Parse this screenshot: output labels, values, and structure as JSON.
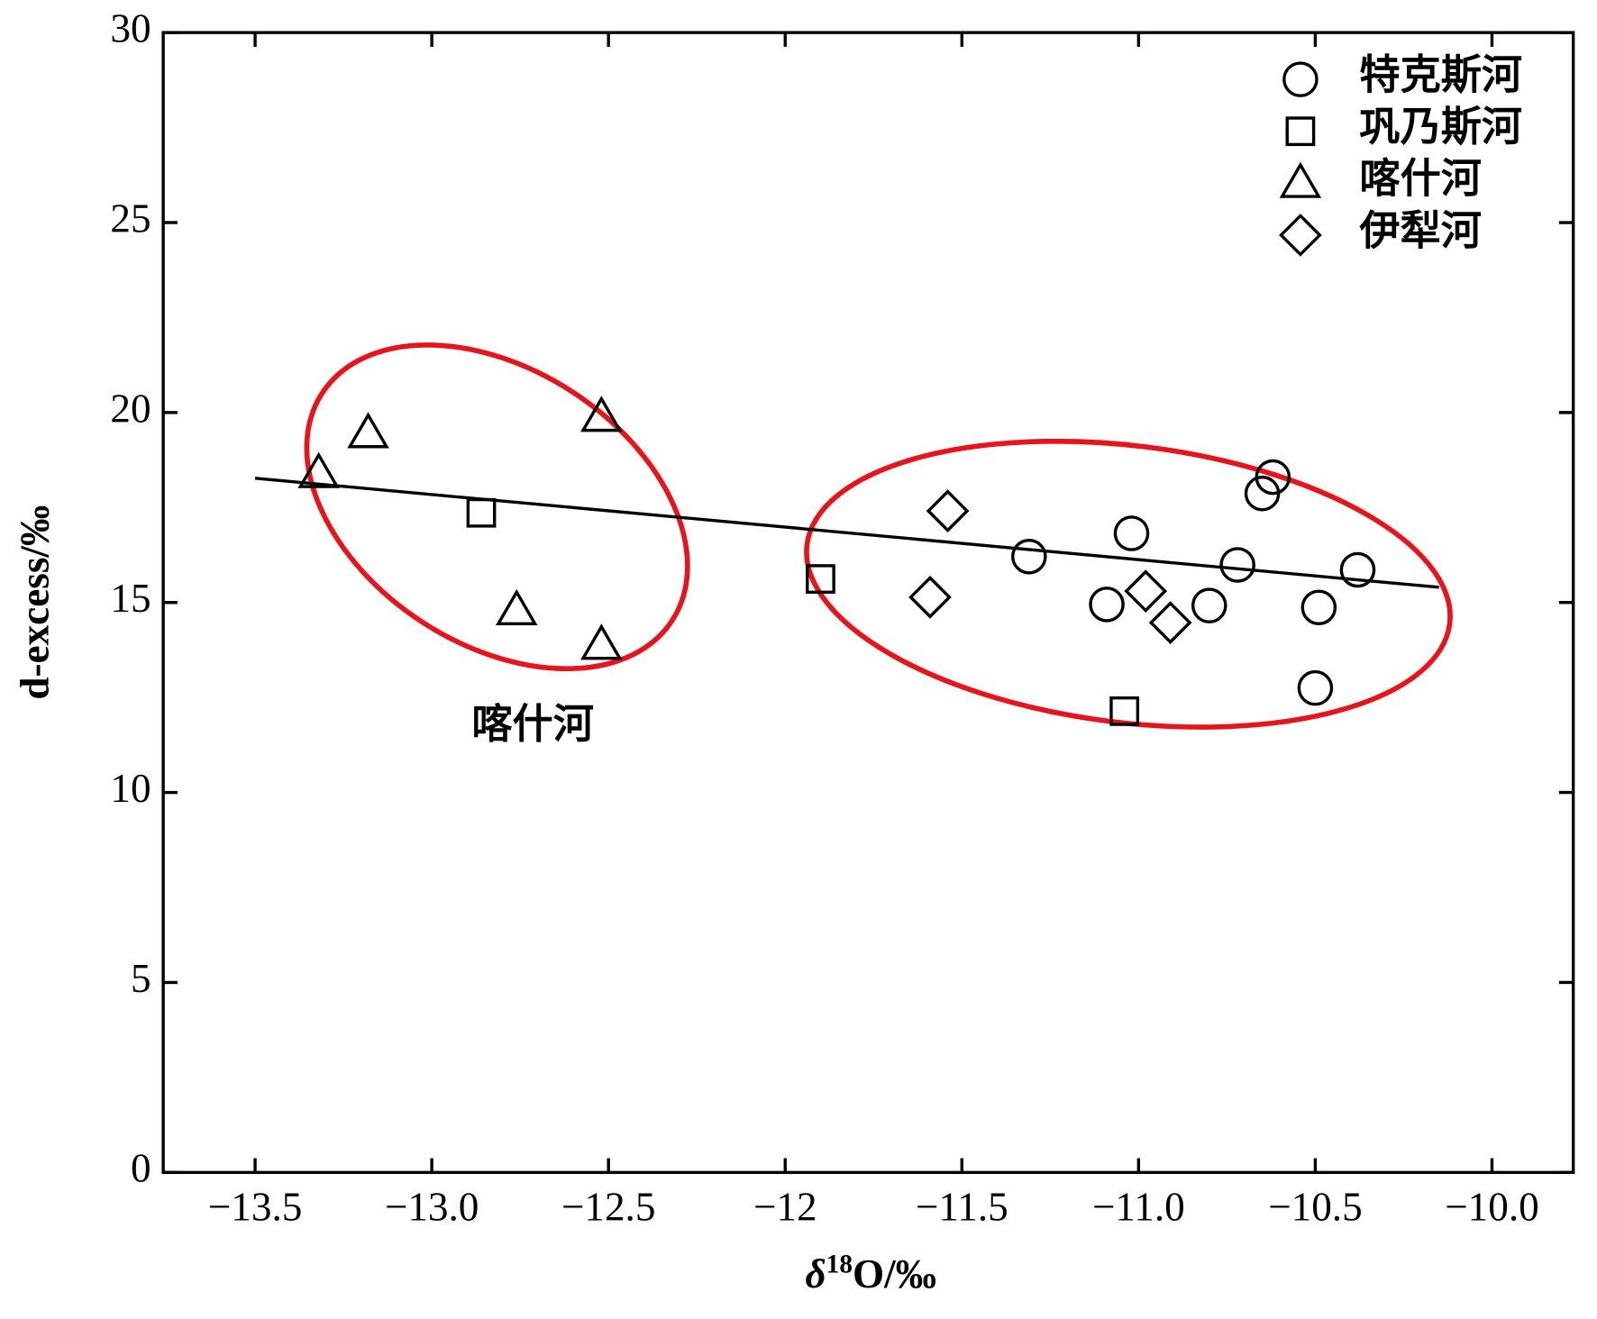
{
  "chart_data": {
    "type": "scatter",
    "x_label": [
      "δ",
      "18",
      "O/‰"
    ],
    "y_label": "d-excess/‰",
    "xlim": [
      -13.76,
      -9.77
    ],
    "ylim": [
      0,
      30
    ],
    "xticks": [
      {
        "value": -13.5,
        "label": "−13.5"
      },
      {
        "value": -13.0,
        "label": "−13.0"
      },
      {
        "value": -12.5,
        "label": "−12.5"
      },
      {
        "value": -12.0,
        "label": "−12"
      },
      {
        "value": -11.5,
        "label": "−11.5"
      },
      {
        "value": -11.0,
        "label": "−11.0"
      },
      {
        "value": -10.5,
        "label": "−10.5"
      },
      {
        "value": -10.0,
        "label": "−10.0"
      }
    ],
    "yticks": [
      0,
      5,
      10,
      15,
      20,
      25,
      30
    ],
    "legend_position": "upper right",
    "series": [
      {
        "name": "特克斯河",
        "marker": "circle",
        "color": "#000000",
        "x": [
          -11.31,
          -11.02,
          -11.09,
          -10.8,
          -10.72,
          -10.65,
          -10.62,
          -10.38,
          -10.49,
          -10.5
        ],
        "values": [
          16.21,
          16.82,
          14.95,
          14.92,
          15.99,
          17.87,
          18.3,
          15.86,
          14.87,
          12.75
        ]
      },
      {
        "name": "巩乃斯河",
        "marker": "square",
        "color": "#000000",
        "x": [
          -12.86,
          -11.9,
          -11.04
        ],
        "values": [
          17.36,
          15.62,
          12.14
        ]
      },
      {
        "name": "喀什河",
        "marker": "triangle",
        "color": "#000000",
        "x": [
          -13.32,
          -13.18,
          -12.52,
          -12.76,
          -12.52
        ],
        "values": [
          18.4,
          19.45,
          19.88,
          14.79,
          13.88
        ]
      },
      {
        "name": "伊犁河",
        "marker": "diamond",
        "color": "#000000",
        "x": [
          -11.54,
          -11.59,
          -10.98,
          -10.91
        ],
        "values": [
          17.41,
          15.14,
          15.3,
          14.47
        ]
      }
    ],
    "fit_line": {
      "x": [
        -13.5,
        -10.15
      ],
      "values": [
        18.27,
        15.4
      ],
      "color": "#000000"
    },
    "annotation": "喀什河"
  }
}
